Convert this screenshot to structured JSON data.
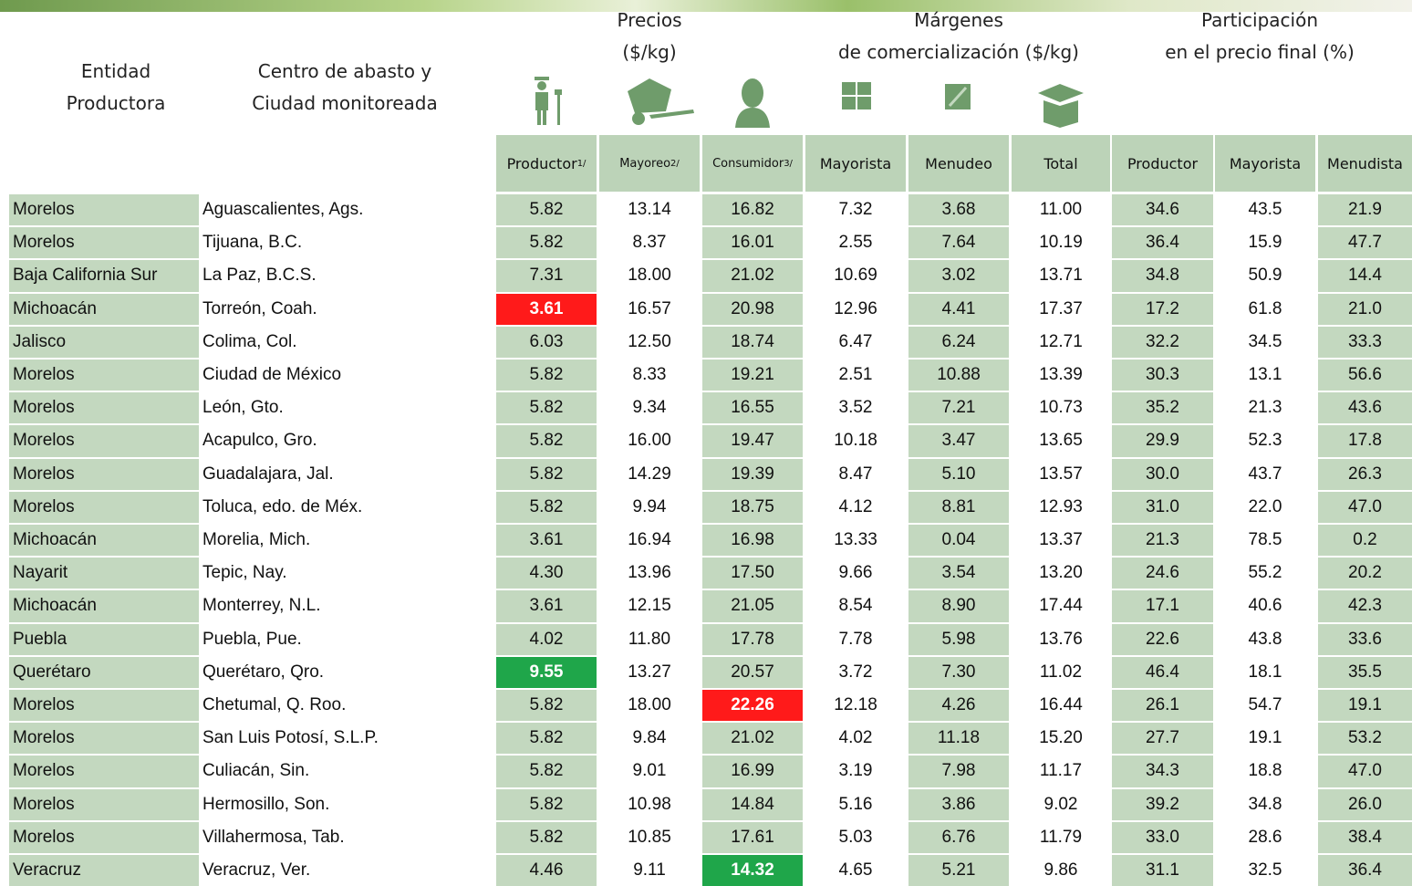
{
  "entity_header": [
    "Entidad",
    "Productora"
  ],
  "city_header": [
    "Centro de abasto y",
    "Ciudad monitoreada"
  ],
  "groups": [
    {
      "lines": [
        "Precios",
        "($/kg)"
      ]
    },
    {
      "lines": [
        "Márgenes",
        "de comercialización ($/kg)"
      ]
    },
    {
      "lines": [
        "Participación",
        "en el precio final (%)"
      ]
    }
  ],
  "columns": [
    {
      "label": "Productor",
      "note": "1/"
    },
    {
      "label": "Mayoreo",
      "note": "2/"
    },
    {
      "label": "Consumidor",
      "note": "3/"
    },
    {
      "label": "Mayorista"
    },
    {
      "label": "Menudeo"
    },
    {
      "label": "Total"
    },
    {
      "label": "Productor"
    },
    {
      "label": "Mayorista"
    },
    {
      "label": "Menudista"
    }
  ],
  "rows": [
    {
      "entity": "Morelos",
      "city": "Aguascalientes, Ags.",
      "values": [
        "5.82",
        "13.14",
        "16.82",
        "7.32",
        "3.68",
        "11.00",
        "34.6",
        "43.5",
        "21.9"
      ]
    },
    {
      "entity": "Morelos",
      "city": "Tijuana, B.C.",
      "values": [
        "5.82",
        "8.37",
        "16.01",
        "2.55",
        "7.64",
        "10.19",
        "36.4",
        "15.9",
        "47.7"
      ]
    },
    {
      "entity": "Baja California Sur",
      "city": "La Paz, B.C.S.",
      "values": [
        "7.31",
        "18.00",
        "21.02",
        "10.69",
        "3.02",
        "13.71",
        "34.8",
        "50.9",
        "14.4"
      ]
    },
    {
      "entity": "Michoacán",
      "city": "Torreón, Coah.",
      "values": [
        "3.61",
        "16.57",
        "20.98",
        "12.96",
        "4.41",
        "17.37",
        "17.2",
        "61.8",
        "21.0"
      ],
      "highlight": {
        "column": 0,
        "color": "#ff1a1a"
      }
    },
    {
      "entity": "Jalisco",
      "city": "Colima, Col.",
      "values": [
        "6.03",
        "12.50",
        "18.74",
        "6.47",
        "6.24",
        "12.71",
        "32.2",
        "34.5",
        "33.3"
      ]
    },
    {
      "entity": "Morelos",
      "city": "Ciudad de México",
      "values": [
        "5.82",
        "8.33",
        "19.21",
        "2.51",
        "10.88",
        "13.39",
        "30.3",
        "13.1",
        "56.6"
      ]
    },
    {
      "entity": "Morelos",
      "city": "León, Gto.",
      "values": [
        "5.82",
        "9.34",
        "16.55",
        "3.52",
        "7.21",
        "10.73",
        "35.2",
        "21.3",
        "43.6"
      ]
    },
    {
      "entity": "Morelos",
      "city": "Acapulco, Gro.",
      "values": [
        "5.82",
        "16.00",
        "19.47",
        "10.18",
        "3.47",
        "13.65",
        "29.9",
        "52.3",
        "17.8"
      ]
    },
    {
      "entity": "Morelos",
      "city": "Guadalajara, Jal.",
      "values": [
        "5.82",
        "14.29",
        "19.39",
        "8.47",
        "5.10",
        "13.57",
        "30.0",
        "43.7",
        "26.3"
      ]
    },
    {
      "entity": "Morelos",
      "city": "Toluca, edo. de Méx.",
      "values": [
        "5.82",
        "9.94",
        "18.75",
        "4.12",
        "8.81",
        "12.93",
        "31.0",
        "22.0",
        "47.0"
      ]
    },
    {
      "entity": "Michoacán",
      "city": "Morelia, Mich.",
      "values": [
        "3.61",
        "16.94",
        "16.98",
        "13.33",
        "0.04",
        "13.37",
        "21.3",
        "78.5",
        "0.2"
      ]
    },
    {
      "entity": "Nayarit",
      "city": "Tepic, Nay.",
      "values": [
        "4.30",
        "13.96",
        "17.50",
        "9.66",
        "3.54",
        "13.20",
        "24.6",
        "55.2",
        "20.2"
      ]
    },
    {
      "entity": "Michoacán",
      "city": "Monterrey, N.L.",
      "values": [
        "3.61",
        "12.15",
        "21.05",
        "8.54",
        "8.90",
        "17.44",
        "17.1",
        "40.6",
        "42.3"
      ]
    },
    {
      "entity": "Puebla",
      "city": "Puebla, Pue.",
      "values": [
        "4.02",
        "11.80",
        "17.78",
        "7.78",
        "5.98",
        "13.76",
        "22.6",
        "43.8",
        "33.6"
      ]
    },
    {
      "entity": "Querétaro",
      "city": "Querétaro, Qro.",
      "values": [
        "9.55",
        "13.27",
        "20.57",
        "3.72",
        "7.30",
        "11.02",
        "46.4",
        "18.1",
        "35.5"
      ],
      "highlight": {
        "column": 0,
        "color": "#1fa64a"
      }
    },
    {
      "entity": "Morelos",
      "city": "Chetumal, Q. Roo.",
      "values": [
        "5.82",
        "18.00",
        "22.26",
        "12.18",
        "4.26",
        "16.44",
        "26.1",
        "54.7",
        "19.1"
      ],
      "highlight": {
        "column": 2,
        "color": "#ff1a1a"
      }
    },
    {
      "entity": "Morelos",
      "city": "San Luis Potosí, S.L.P.",
      "values": [
        "5.82",
        "9.84",
        "21.02",
        "4.02",
        "11.18",
        "15.20",
        "27.7",
        "19.1",
        "53.2"
      ]
    },
    {
      "entity": "Morelos",
      "city": "Culiacán, Sin.",
      "values": [
        "5.82",
        "9.01",
        "16.99",
        "3.19",
        "7.98",
        "11.17",
        "34.3",
        "18.8",
        "47.0"
      ]
    },
    {
      "entity": "Morelos",
      "city": "Hermosillo, Son.",
      "values": [
        "5.82",
        "10.98",
        "14.84",
        "5.16",
        "3.86",
        "9.02",
        "39.2",
        "34.8",
        "26.0"
      ]
    },
    {
      "entity": "Morelos",
      "city": "Villahermosa, Tab.",
      "values": [
        "5.82",
        "10.85",
        "17.61",
        "5.03",
        "6.76",
        "11.79",
        "33.0",
        "28.6",
        "38.4"
      ]
    },
    {
      "entity": "Veracruz",
      "city": "Veracruz, Ver.",
      "values": [
        "4.46",
        "9.11",
        "14.32",
        "4.65",
        "5.21",
        "9.86",
        "31.1",
        "32.5",
        "36.4"
      ],
      "highlight": {
        "column": 2,
        "color": "#1fa64a"
      }
    }
  ]
}
